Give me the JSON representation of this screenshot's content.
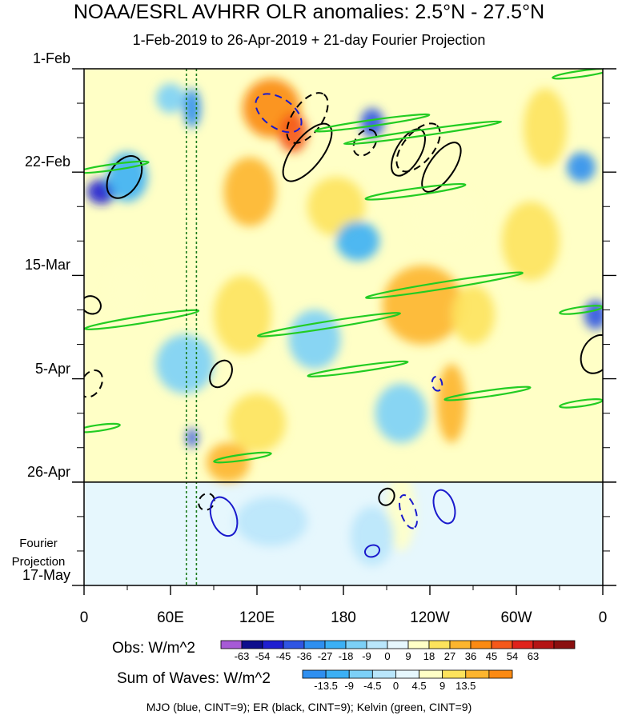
{
  "chart_data": {
    "type": "heatmap",
    "title": "NOAA/ESRL AVHRR OLR anomalies: 2.5°N - 27.5°N",
    "subtitle": "1-Feb-2019 to 26-Apr-2019 + 21-day Fourier Projection",
    "x_ticks": [
      {
        "label": "0",
        "lon": 0
      },
      {
        "label": "60E",
        "lon": 60
      },
      {
        "label": "120E",
        "lon": 120
      },
      {
        "label": "180",
        "lon": 180
      },
      {
        "label": "120W",
        "lon": 240
      },
      {
        "label": "60W",
        "lon": 300
      },
      {
        "label": "0",
        "lon": 360
      }
    ],
    "xlim": [
      0,
      360
    ],
    "y_ticks": [
      {
        "label": "1-Feb",
        "day": 0
      },
      {
        "label": "22-Feb",
        "day": 21
      },
      {
        "label": "15-Mar",
        "day": 42
      },
      {
        "label": "5-Apr",
        "day": 63
      },
      {
        "label": "26-Apr",
        "day": 84
      },
      {
        "label": "17-May",
        "day": 105
      }
    ],
    "ylim_days": [
      0,
      105
    ],
    "observation_end_day": 84,
    "projection_label": "Fourier\nProjection",
    "reference_lines_lon": [
      71,
      78
    ],
    "obs_colorbar": {
      "title": "Obs: W/m^2",
      "levels": [
        "-63",
        "-54",
        "-45",
        "-36",
        "-27",
        "-18",
        "-9",
        "0",
        "9",
        "18",
        "27",
        "36",
        "45",
        "54",
        "63"
      ],
      "colors": [
        "#a65ad6",
        "#0d0d8c",
        "#1f1fd0",
        "#2f55e3",
        "#2e8ff0",
        "#3bb0f5",
        "#7cd0f7",
        "#b9e6fb",
        "#e6f7fd",
        "#ffffc6",
        "#fde35c",
        "#fdb52e",
        "#fb8a13",
        "#f5581a",
        "#e0231b",
        "#b41414",
        "#8a1010"
      ]
    },
    "waves_colorbar": {
      "title": "Sum of Waves: W/m^2",
      "levels": [
        "-13.5",
        "-9",
        "-4.5",
        "0",
        "4.5",
        "9",
        "13.5"
      ],
      "colors": [
        "#2e8ff0",
        "#3bb0f5",
        "#7cd0f7",
        "#b9e6fb",
        "#e6f7fd",
        "#ffffc6",
        "#fde35c",
        "#fdb52e",
        "#fb8a13"
      ]
    },
    "legend_note": "MJO (blue, CINT=9); ER (black, CINT=9); Kelvin (green, CINT=9)",
    "series_colors": {
      "mjo": "#1a1acc",
      "er": "#000000",
      "kelvin": "#22cc22"
    },
    "anomaly_blobs": [
      {
        "lon": 12,
        "day": 25,
        "rx_deg": 10,
        "ry_days": 2.5,
        "value": -54
      },
      {
        "lon": 30,
        "day": 22,
        "rx_deg": 14,
        "ry_days": 5,
        "value": -27
      },
      {
        "lon": 60,
        "day": 6,
        "rx_deg": 10,
        "ry_days": 3,
        "value": -18
      },
      {
        "lon": 75,
        "day": 8,
        "rx_deg": 6,
        "ry_days": 4,
        "value": -36
      },
      {
        "lon": 130,
        "day": 8,
        "rx_deg": 20,
        "ry_days": 6,
        "value": 36
      },
      {
        "lon": 115,
        "day": 25,
        "rx_deg": 18,
        "ry_days": 7,
        "value": 27
      },
      {
        "lon": 145,
        "day": 13,
        "rx_deg": 10,
        "ry_days": 4,
        "value": 45
      },
      {
        "lon": 200,
        "day": 11,
        "rx_deg": 8,
        "ry_days": 3,
        "value": -45
      },
      {
        "lon": 175,
        "day": 28,
        "rx_deg": 20,
        "ry_days": 6,
        "value": 18
      },
      {
        "lon": 250,
        "day": 30,
        "rx_deg": 25,
        "ry_days": 6,
        "value": 9
      },
      {
        "lon": 235,
        "day": 48,
        "rx_deg": 28,
        "ry_days": 8,
        "value": 27
      },
      {
        "lon": 270,
        "day": 50,
        "rx_deg": 15,
        "ry_days": 6,
        "value": 18
      },
      {
        "lon": 110,
        "day": 50,
        "rx_deg": 20,
        "ry_days": 8,
        "value": 18
      },
      {
        "lon": 160,
        "day": 55,
        "rx_deg": 18,
        "ry_days": 6,
        "value": -18
      },
      {
        "lon": 70,
        "day": 60,
        "rx_deg": 20,
        "ry_days": 6,
        "value": -18
      },
      {
        "lon": 120,
        "day": 72,
        "rx_deg": 20,
        "ry_days": 6,
        "value": 18
      },
      {
        "lon": 220,
        "day": 70,
        "rx_deg": 18,
        "ry_days": 6,
        "value": -18
      },
      {
        "lon": 255,
        "day": 68,
        "rx_deg": 10,
        "ry_days": 8,
        "value": 27
      },
      {
        "lon": 75,
        "day": 75,
        "rx_deg": 4,
        "ry_days": 2,
        "value": -45
      },
      {
        "lon": 100,
        "day": 80,
        "rx_deg": 15,
        "ry_days": 4,
        "value": 27
      },
      {
        "lon": 320,
        "day": 12,
        "rx_deg": 15,
        "ry_days": 8,
        "value": 18
      },
      {
        "lon": 345,
        "day": 20,
        "rx_deg": 10,
        "ry_days": 3,
        "value": -36
      },
      {
        "lon": 355,
        "day": 50,
        "rx_deg": 8,
        "ry_days": 3,
        "value": -45
      },
      {
        "lon": 310,
        "day": 35,
        "rx_deg": 20,
        "ry_days": 8,
        "value": 18
      },
      {
        "lon": 30,
        "day": 45,
        "rx_deg": 15,
        "ry_days": 6,
        "value": 9
      },
      {
        "lon": 190,
        "day": 35,
        "rx_deg": 15,
        "ry_days": 4,
        "value": -27
      },
      {
        "lon": 220,
        "day": 90,
        "rx_deg": 10,
        "ry_days": 8,
        "value": 9
      },
      {
        "lon": 200,
        "day": 95,
        "rx_deg": 15,
        "ry_days": 6,
        "value": -9
      },
      {
        "lon": 130,
        "day": 92,
        "rx_deg": 25,
        "ry_days": 5,
        "value": -4.5
      }
    ],
    "wave_contours": [
      {
        "type": "er",
        "dashed": false,
        "lon": 28,
        "day": 22,
        "rx_deg": 16,
        "ry_days": 3,
        "angle": -58
      },
      {
        "type": "er",
        "dashed": true,
        "lon": 155,
        "day": 10,
        "rx_deg": 20,
        "ry_days": 3,
        "angle": -55
      },
      {
        "type": "er",
        "dashed": false,
        "lon": 155,
        "day": 17,
        "rx_deg": 24,
        "ry_days": 3,
        "angle": -52
      },
      {
        "type": "er",
        "dashed": true,
        "lon": 195,
        "day": 15,
        "rx_deg": 10,
        "ry_days": 2,
        "angle": -55
      },
      {
        "type": "er",
        "dashed": true,
        "lon": 232,
        "day": 16,
        "rx_deg": 20,
        "ry_days": 3,
        "angle": -50
      },
      {
        "type": "er",
        "dashed": false,
        "lon": 225,
        "day": 17,
        "rx_deg": 18,
        "ry_days": 2.5,
        "angle": -60
      },
      {
        "type": "er",
        "dashed": false,
        "lon": 248,
        "day": 20,
        "rx_deg": 20,
        "ry_days": 2.5,
        "angle": -55
      },
      {
        "type": "er",
        "dashed": false,
        "lon": 356,
        "day": 58,
        "rx_deg": 14,
        "ry_days": 3,
        "angle": -62
      },
      {
        "type": "er",
        "dashed": false,
        "lon": 95,
        "day": 62,
        "rx_deg": 10,
        "ry_days": 2,
        "angle": -60
      },
      {
        "type": "er",
        "dashed": true,
        "lon": 5,
        "day": 64,
        "rx_deg": 10,
        "ry_days": 2,
        "angle": -60
      },
      {
        "type": "er",
        "dashed": false,
        "lon": 5,
        "day": 48,
        "rx_deg": 6,
        "ry_days": 2,
        "angle": -60
      },
      {
        "type": "er",
        "dashed": true,
        "lon": 85,
        "day": 88,
        "rx_deg": 6,
        "ry_days": 1.5,
        "angle": -55
      },
      {
        "type": "er",
        "dashed": false,
        "lon": 210,
        "day": 87,
        "rx_deg": 6,
        "ry_days": 1.5,
        "angle": -60
      },
      {
        "type": "mjo",
        "dashed": true,
        "lon": 135,
        "day": 9,
        "rx_deg": 18,
        "ry_days": 3,
        "angle": 35
      },
      {
        "type": "mjo",
        "dashed": false,
        "lon": 97,
        "day": 91,
        "rx_deg": 14,
        "ry_days": 2.5,
        "angle": 70
      },
      {
        "type": "mjo",
        "dashed": true,
        "lon": 225,
        "day": 90,
        "rx_deg": 12,
        "ry_days": 1.5,
        "angle": 72
      },
      {
        "type": "mjo",
        "dashed": false,
        "lon": 250,
        "day": 89,
        "rx_deg": 12,
        "ry_days": 2,
        "angle": 72
      },
      {
        "type": "mjo",
        "dashed": false,
        "lon": 200,
        "day": 98,
        "rx_deg": 4,
        "ry_days": 1.5,
        "angle": 70
      },
      {
        "type": "mjo",
        "dashed": true,
        "lon": 245,
        "day": 64,
        "rx_deg": 5,
        "ry_days": 1,
        "angle": 80
      },
      {
        "type": "kelvin",
        "lon": 200,
        "day": 11,
        "rx_deg": 40,
        "ry_days": 0.6,
        "angle": -8
      },
      {
        "type": "kelvin",
        "lon": 235,
        "day": 13,
        "rx_deg": 55,
        "ry_days": 0.6,
        "angle": -8
      },
      {
        "type": "kelvin",
        "lon": 20,
        "day": 20,
        "rx_deg": 25,
        "ry_days": 0.6,
        "angle": -8
      },
      {
        "type": "kelvin",
        "lon": 230,
        "day": 25,
        "rx_deg": 35,
        "ry_days": 0.7,
        "angle": -8
      },
      {
        "type": "kelvin",
        "lon": 250,
        "day": 44,
        "rx_deg": 55,
        "ry_days": 0.7,
        "angle": -9
      },
      {
        "type": "kelvin",
        "lon": 170,
        "day": 52,
        "rx_deg": 50,
        "ry_days": 0.7,
        "angle": -9
      },
      {
        "type": "kelvin",
        "lon": 40,
        "day": 51,
        "rx_deg": 40,
        "ry_days": 0.7,
        "angle": -9
      },
      {
        "type": "kelvin",
        "lon": 190,
        "day": 61,
        "rx_deg": 35,
        "ry_days": 0.6,
        "angle": -8
      },
      {
        "type": "kelvin",
        "lon": 280,
        "day": 66,
        "rx_deg": 30,
        "ry_days": 0.6,
        "angle": -8
      },
      {
        "type": "kelvin",
        "lon": 10,
        "day": 73,
        "rx_deg": 15,
        "ry_days": 0.6,
        "angle": -8
      },
      {
        "type": "kelvin",
        "lon": 110,
        "day": 79,
        "rx_deg": 20,
        "ry_days": 0.6,
        "angle": -8
      },
      {
        "type": "kelvin",
        "lon": 345,
        "day": 49,
        "rx_deg": 15,
        "ry_days": 0.6,
        "angle": -8
      },
      {
        "type": "kelvin",
        "lon": 345,
        "day": 68,
        "rx_deg": 15,
        "ry_days": 0.6,
        "angle": -8
      },
      {
        "type": "kelvin",
        "lon": 345,
        "day": 1,
        "rx_deg": 20,
        "ry_days": 0.6,
        "angle": -8
      }
    ]
  }
}
